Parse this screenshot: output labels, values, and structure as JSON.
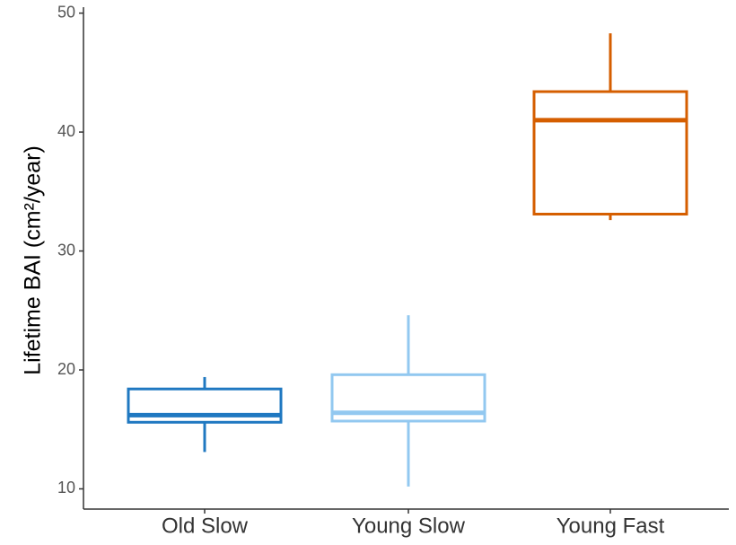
{
  "chart_data": {
    "type": "box",
    "y_label": "Lifetime BAI (cm²/year)",
    "categories": [
      "Old Slow",
      "Young Slow",
      "Young Fast"
    ],
    "boxes": [
      {
        "min": 13.1,
        "q1": 15.6,
        "median": 16.2,
        "q3": 18.4,
        "max": 19.4,
        "color": "#1f78c1"
      },
      {
        "min": 10.2,
        "q1": 15.7,
        "median": 16.4,
        "q3": 19.6,
        "max": 24.6,
        "color": "#92c8f0"
      },
      {
        "min": 32.6,
        "q1": 33.1,
        "median": 41.0,
        "q3": 43.4,
        "max": 48.3,
        "color": "#d55e00"
      }
    ],
    "ylim": [
      8.3,
      50.5
    ],
    "yticks": [
      10,
      20,
      30,
      40,
      50
    ],
    "grid": false
  }
}
